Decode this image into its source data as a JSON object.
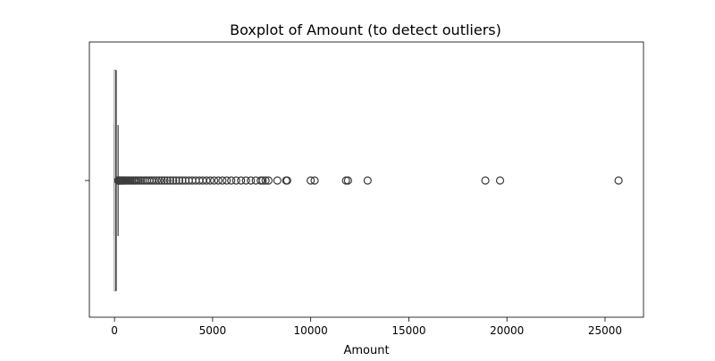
{
  "chart_data": {
    "type": "box",
    "title": "Boxplot of Amount (to detect outliers)",
    "xlabel": "Amount",
    "ylabel": "",
    "xlim": [
      -1280,
      26960
    ],
    "xticks": [
      0,
      5000,
      10000,
      15000,
      20000,
      25000
    ],
    "xtick_labels": [
      "0",
      "5000",
      "10000",
      "15000",
      "20000",
      "25000"
    ],
    "orientation": "horizontal",
    "grid": false,
    "box": {
      "min": 0,
      "q1": 5.6,
      "median": 22.0,
      "q3": 77.2,
      "whisker_high": 184.5
    },
    "outliers": [
      190,
      205,
      220,
      240,
      265,
      290,
      320,
      350,
      390,
      430,
      470,
      520,
      570,
      630,
      690,
      760,
      830,
      900,
      980,
      1060,
      1150,
      1240,
      1340,
      1440,
      1550,
      1660,
      1780,
      1900,
      2020,
      2150,
      2280,
      2410,
      2550,
      2690,
      2840,
      2990,
      3140,
      3300,
      3460,
      3620,
      3790,
      3960,
      4140,
      4320,
      4500,
      4690,
      4880,
      5080,
      5290,
      5500,
      5720,
      5950,
      6200,
      6450,
      6700,
      6950,
      7200,
      7450,
      7550,
      7700,
      7850,
      8300,
      8750,
      8800,
      10000,
      10200,
      11800,
      11900,
      12900,
      18900,
      19650,
      25690
    ],
    "colors": {
      "box_stroke": "#3c3c3c",
      "box_fill": "#3c3c3c",
      "axis": "#000000"
    }
  }
}
